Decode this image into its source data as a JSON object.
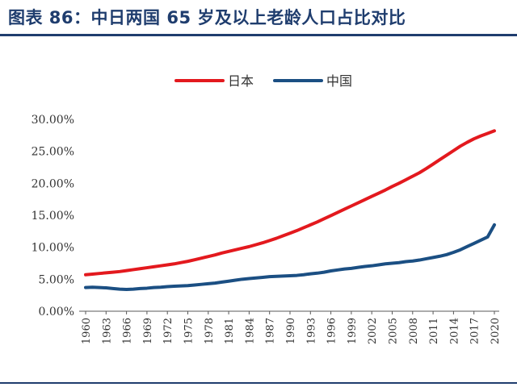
{
  "header": {
    "title": "图表 86：中日两国 65 岁及以上老龄人口占比对比"
  },
  "colors": {
    "japan": "#e3191e",
    "china": "#1b4f83",
    "accent": "#1f3d6e",
    "axis": "#595959"
  },
  "chart_data": {
    "type": "line",
    "title": "",
    "xlabel": "",
    "ylabel": "",
    "ylim": [
      0,
      30
    ],
    "y_ticks": [
      "0.00%",
      "5.00%",
      "10.00%",
      "15.00%",
      "20.00%",
      "25.00%",
      "30.00%"
    ],
    "x_tick_labels": [
      "1960",
      "1963",
      "1966",
      "1969",
      "1972",
      "1975",
      "1978",
      "1981",
      "1984",
      "1987",
      "1990",
      "1993",
      "1996",
      "1999",
      "2002",
      "2005",
      "2008",
      "2011",
      "2014",
      "2017",
      "2020"
    ],
    "x": [
      1960,
      1961,
      1962,
      1963,
      1964,
      1965,
      1966,
      1967,
      1968,
      1969,
      1970,
      1971,
      1972,
      1973,
      1974,
      1975,
      1976,
      1977,
      1978,
      1979,
      1980,
      1981,
      1982,
      1983,
      1984,
      1985,
      1986,
      1987,
      1988,
      1989,
      1990,
      1991,
      1992,
      1993,
      1994,
      1995,
      1996,
      1997,
      1998,
      1999,
      2000,
      2001,
      2002,
      2003,
      2004,
      2005,
      2006,
      2007,
      2008,
      2009,
      2010,
      2011,
      2012,
      2013,
      2014,
      2015,
      2016,
      2017,
      2018,
      2019,
      2020
    ],
    "grid": false,
    "legend_position": "top-center",
    "series": [
      {
        "name": "日本",
        "color": "#e3191e",
        "values": [
          5.7,
          5.8,
          5.9,
          6.0,
          6.1,
          6.2,
          6.35,
          6.5,
          6.65,
          6.8,
          6.95,
          7.1,
          7.25,
          7.4,
          7.6,
          7.8,
          8.05,
          8.3,
          8.55,
          8.8,
          9.1,
          9.35,
          9.6,
          9.85,
          10.1,
          10.4,
          10.7,
          11.05,
          11.4,
          11.8,
          12.2,
          12.6,
          13.05,
          13.5,
          13.95,
          14.45,
          14.95,
          15.45,
          15.95,
          16.45,
          16.95,
          17.45,
          17.95,
          18.45,
          18.95,
          19.5,
          20.0,
          20.55,
          21.1,
          21.65,
          22.3,
          23.0,
          23.7,
          24.4,
          25.1,
          25.8,
          26.4,
          26.95,
          27.4,
          27.8,
          28.2
        ]
      },
      {
        "name": "中国",
        "color": "#1b4f83",
        "values": [
          3.7,
          3.75,
          3.7,
          3.65,
          3.55,
          3.45,
          3.4,
          3.45,
          3.55,
          3.6,
          3.7,
          3.75,
          3.85,
          3.9,
          3.95,
          4.0,
          4.1,
          4.2,
          4.3,
          4.4,
          4.55,
          4.7,
          4.85,
          5.0,
          5.1,
          5.2,
          5.3,
          5.4,
          5.45,
          5.5,
          5.55,
          5.6,
          5.7,
          5.85,
          5.95,
          6.1,
          6.3,
          6.45,
          6.6,
          6.7,
          6.85,
          7.0,
          7.1,
          7.25,
          7.4,
          7.5,
          7.6,
          7.75,
          7.85,
          8.0,
          8.2,
          8.4,
          8.6,
          8.85,
          9.2,
          9.6,
          10.1,
          10.6,
          11.1,
          11.6,
          13.5
        ]
      }
    ]
  }
}
